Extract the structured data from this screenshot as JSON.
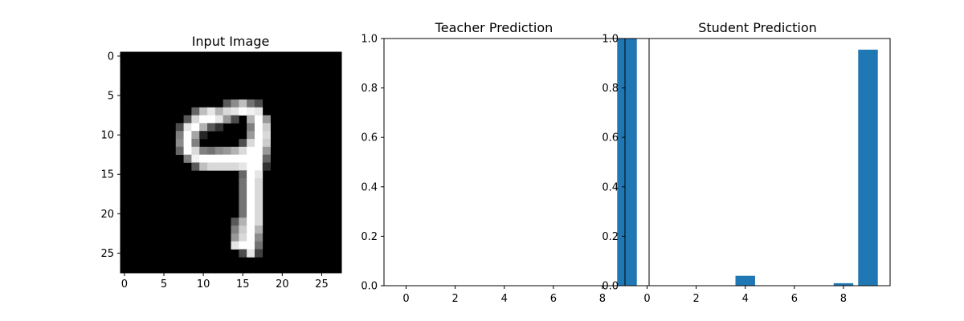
{
  "panels": [
    {
      "title": "Input Image",
      "type": "image",
      "x_ticks": [
        "0",
        "5",
        "10",
        "15",
        "20",
        "25"
      ],
      "y_ticks": [
        "0",
        "5",
        "10",
        "15",
        "20",
        "25"
      ]
    },
    {
      "title": "Teacher Prediction",
      "type": "bar",
      "x_ticks": [
        "0",
        "2",
        "4",
        "6",
        "8"
      ],
      "y_ticks": [
        "0.0",
        "0.2",
        "0.4",
        "0.6",
        "0.8",
        "1.0"
      ]
    },
    {
      "title": "Student Prediction",
      "type": "bar",
      "x_ticks": [
        "0",
        "2",
        "4",
        "6",
        "8"
      ],
      "y_ticks": [
        "0.0",
        "0.2",
        "0.4",
        "0.6",
        "0.8",
        "1.0"
      ]
    }
  ],
  "chart_data": [
    {
      "type": "heatmap",
      "title": "Input Image",
      "colormap": "gray",
      "size": [
        28,
        28
      ],
      "xlim": [
        0,
        27
      ],
      "ylim": [
        27,
        0
      ],
      "pixels": [
        {
          "r": 6,
          "c": 13,
          "v": 0.35
        },
        {
          "r": 6,
          "c": 14,
          "v": 0.55
        },
        {
          "r": 6,
          "c": 15,
          "v": 0.75
        },
        {
          "r": 6,
          "c": 16,
          "v": 0.45
        },
        {
          "r": 6,
          "c": 17,
          "v": 0.3
        },
        {
          "r": 7,
          "c": 9,
          "v": 0.4
        },
        {
          "r": 7,
          "c": 10,
          "v": 0.75
        },
        {
          "r": 7,
          "c": 11,
          "v": 0.9
        },
        {
          "r": 7,
          "c": 12,
          "v": 0.7
        },
        {
          "r": 7,
          "c": 13,
          "v": 0.85
        },
        {
          "r": 7,
          "c": 14,
          "v": 0.9
        },
        {
          "r": 7,
          "c": 15,
          "v": 1.0
        },
        {
          "r": 7,
          "c": 16,
          "v": 0.95
        },
        {
          "r": 7,
          "c": 17,
          "v": 0.9
        },
        {
          "r": 8,
          "c": 8,
          "v": 0.35
        },
        {
          "r": 8,
          "c": 9,
          "v": 0.85
        },
        {
          "r": 8,
          "c": 10,
          "v": 1.0
        },
        {
          "r": 8,
          "c": 11,
          "v": 1.0
        },
        {
          "r": 8,
          "c": 12,
          "v": 0.9
        },
        {
          "r": 8,
          "c": 13,
          "v": 0.6
        },
        {
          "r": 8,
          "c": 14,
          "v": 0.3
        },
        {
          "r": 8,
          "c": 16,
          "v": 0.7
        },
        {
          "r": 8,
          "c": 17,
          "v": 1.0
        },
        {
          "r": 8,
          "c": 18,
          "v": 0.6
        },
        {
          "r": 9,
          "c": 7,
          "v": 0.3
        },
        {
          "r": 9,
          "c": 8,
          "v": 0.9
        },
        {
          "r": 9,
          "c": 9,
          "v": 1.0
        },
        {
          "r": 9,
          "c": 10,
          "v": 0.7
        },
        {
          "r": 9,
          "c": 11,
          "v": 0.35
        },
        {
          "r": 9,
          "c": 12,
          "v": 0.2
        },
        {
          "r": 9,
          "c": 16,
          "v": 0.5
        },
        {
          "r": 9,
          "c": 17,
          "v": 1.0
        },
        {
          "r": 9,
          "c": 18,
          "v": 0.8
        },
        {
          "r": 10,
          "c": 7,
          "v": 0.5
        },
        {
          "r": 10,
          "c": 8,
          "v": 1.0
        },
        {
          "r": 10,
          "c": 9,
          "v": 0.65
        },
        {
          "r": 10,
          "c": 10,
          "v": 0.15
        },
        {
          "r": 10,
          "c": 16,
          "v": 0.6
        },
        {
          "r": 10,
          "c": 17,
          "v": 1.0
        },
        {
          "r": 10,
          "c": 18,
          "v": 0.85
        },
        {
          "r": 11,
          "c": 7,
          "v": 0.55
        },
        {
          "r": 11,
          "c": 8,
          "v": 1.0
        },
        {
          "r": 11,
          "c": 9,
          "v": 0.5
        },
        {
          "r": 11,
          "c": 15,
          "v": 0.3
        },
        {
          "r": 11,
          "c": 16,
          "v": 0.85
        },
        {
          "r": 11,
          "c": 17,
          "v": 1.0
        },
        {
          "r": 11,
          "c": 18,
          "v": 0.8
        },
        {
          "r": 12,
          "c": 7,
          "v": 0.4
        },
        {
          "r": 12,
          "c": 8,
          "v": 1.0
        },
        {
          "r": 12,
          "c": 9,
          "v": 0.85
        },
        {
          "r": 12,
          "c": 10,
          "v": 0.5
        },
        {
          "r": 12,
          "c": 11,
          "v": 0.45
        },
        {
          "r": 12,
          "c": 12,
          "v": 0.55
        },
        {
          "r": 12,
          "c": 13,
          "v": 0.6
        },
        {
          "r": 12,
          "c": 14,
          "v": 0.7
        },
        {
          "r": 12,
          "c": 15,
          "v": 0.85
        },
        {
          "r": 12,
          "c": 16,
          "v": 1.0
        },
        {
          "r": 12,
          "c": 17,
          "v": 1.0
        },
        {
          "r": 12,
          "c": 18,
          "v": 0.6
        },
        {
          "r": 13,
          "c": 8,
          "v": 0.5
        },
        {
          "r": 13,
          "c": 9,
          "v": 0.95
        },
        {
          "r": 13,
          "c": 10,
          "v": 1.0
        },
        {
          "r": 13,
          "c": 11,
          "v": 1.0
        },
        {
          "r": 13,
          "c": 12,
          "v": 1.0
        },
        {
          "r": 13,
          "c": 13,
          "v": 1.0
        },
        {
          "r": 13,
          "c": 14,
          "v": 1.0
        },
        {
          "r": 13,
          "c": 15,
          "v": 1.0
        },
        {
          "r": 13,
          "c": 16,
          "v": 1.0
        },
        {
          "r": 13,
          "c": 17,
          "v": 1.0
        },
        {
          "r": 13,
          "c": 18,
          "v": 0.4
        },
        {
          "r": 14,
          "c": 9,
          "v": 0.35
        },
        {
          "r": 14,
          "c": 10,
          "v": 0.75
        },
        {
          "r": 14,
          "c": 11,
          "v": 0.85
        },
        {
          "r": 14,
          "c": 12,
          "v": 0.85
        },
        {
          "r": 14,
          "c": 13,
          "v": 0.85
        },
        {
          "r": 14,
          "c": 14,
          "v": 0.85
        },
        {
          "r": 14,
          "c": 15,
          "v": 0.9
        },
        {
          "r": 14,
          "c": 16,
          "v": 1.0
        },
        {
          "r": 14,
          "c": 17,
          "v": 1.0
        },
        {
          "r": 14,
          "c": 18,
          "v": 0.2
        },
        {
          "r": 15,
          "c": 15,
          "v": 0.4
        },
        {
          "r": 15,
          "c": 16,
          "v": 1.0
        },
        {
          "r": 15,
          "c": 17,
          "v": 0.9
        },
        {
          "r": 16,
          "c": 15,
          "v": 0.45
        },
        {
          "r": 16,
          "c": 16,
          "v": 1.0
        },
        {
          "r": 16,
          "c": 17,
          "v": 0.85
        },
        {
          "r": 17,
          "c": 15,
          "v": 0.45
        },
        {
          "r": 17,
          "c": 16,
          "v": 1.0
        },
        {
          "r": 17,
          "c": 17,
          "v": 0.85
        },
        {
          "r": 18,
          "c": 15,
          "v": 0.45
        },
        {
          "r": 18,
          "c": 16,
          "v": 1.0
        },
        {
          "r": 18,
          "c": 17,
          "v": 0.85
        },
        {
          "r": 19,
          "c": 15,
          "v": 0.45
        },
        {
          "r": 19,
          "c": 16,
          "v": 1.0
        },
        {
          "r": 19,
          "c": 17,
          "v": 0.85
        },
        {
          "r": 20,
          "c": 15,
          "v": 0.45
        },
        {
          "r": 20,
          "c": 16,
          "v": 1.0
        },
        {
          "r": 20,
          "c": 17,
          "v": 0.85
        },
        {
          "r": 21,
          "c": 14,
          "v": 0.35
        },
        {
          "r": 21,
          "c": 15,
          "v": 0.7
        },
        {
          "r": 21,
          "c": 16,
          "v": 1.0
        },
        {
          "r": 21,
          "c": 17,
          "v": 0.85
        },
        {
          "r": 22,
          "c": 14,
          "v": 0.5
        },
        {
          "r": 22,
          "c": 15,
          "v": 0.8
        },
        {
          "r": 22,
          "c": 16,
          "v": 1.0
        },
        {
          "r": 22,
          "c": 17,
          "v": 0.7
        },
        {
          "r": 23,
          "c": 14,
          "v": 0.6
        },
        {
          "r": 23,
          "c": 15,
          "v": 0.85
        },
        {
          "r": 23,
          "c": 16,
          "v": 1.0
        },
        {
          "r": 23,
          "c": 17,
          "v": 0.55
        },
        {
          "r": 24,
          "c": 14,
          "v": 0.9
        },
        {
          "r": 24,
          "c": 15,
          "v": 1.0
        },
        {
          "r": 24,
          "c": 16,
          "v": 1.0
        },
        {
          "r": 24,
          "c": 17,
          "v": 0.45
        },
        {
          "r": 25,
          "c": 15,
          "v": 0.3
        },
        {
          "r": 25,
          "c": 16,
          "v": 0.9
        },
        {
          "r": 25,
          "c": 17,
          "v": 0.25
        }
      ]
    },
    {
      "type": "bar",
      "title": "Teacher Prediction",
      "categories": [
        0,
        1,
        2,
        3,
        4,
        5,
        6,
        7,
        8,
        9
      ],
      "values": [
        0,
        0,
        0,
        0,
        0,
        0,
        0,
        0,
        0,
        1.0
      ],
      "xlabel": "",
      "ylabel": "",
      "xlim": [
        -0.9,
        9.9
      ],
      "ylim": [
        0,
        1.0
      ],
      "color": "#1f77b4"
    },
    {
      "type": "bar",
      "title": "Student Prediction",
      "categories": [
        0,
        1,
        2,
        3,
        4,
        5,
        6,
        7,
        8,
        9
      ],
      "values": [
        0,
        0,
        0,
        0,
        0.04,
        0,
        0,
        0,
        0.01,
        0.955
      ],
      "xlabel": "",
      "ylabel": "",
      "xlim": [
        -0.9,
        9.9
      ],
      "ylim": [
        0,
        1.0
      ],
      "color": "#1f77b4"
    }
  ]
}
